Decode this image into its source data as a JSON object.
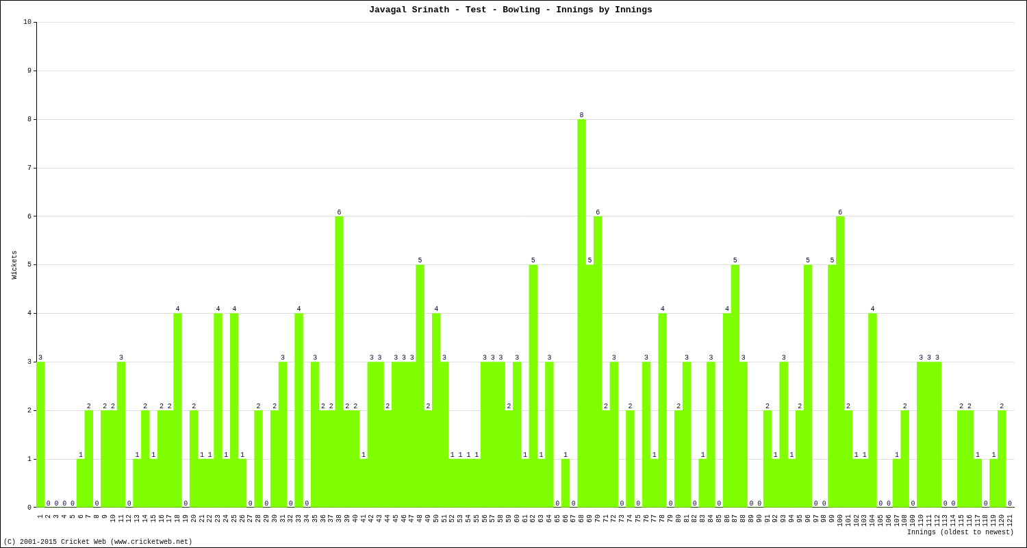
{
  "chart_data": {
    "type": "bar",
    "title": "Javagal Srinath - Test - Bowling - Innings by Innings",
    "x_label": "Innings (oldest to newest)",
    "y_label": "Wickets",
    "footer": "(C) 2001-2015 Cricket Web (www.cricketweb.net)",
    "categories": [
      "1",
      "2",
      "3",
      "4",
      "5",
      "6",
      "7",
      "8",
      "9",
      "10",
      "11",
      "12",
      "13",
      "14",
      "15",
      "16",
      "17",
      "18",
      "19",
      "20",
      "21",
      "22",
      "23",
      "24",
      "25",
      "26",
      "27",
      "28",
      "29",
      "30",
      "31",
      "32",
      "33",
      "34",
      "35",
      "36",
      "37",
      "38",
      "39",
      "40",
      "41",
      "42",
      "43",
      "44",
      "45",
      "46",
      "47",
      "48",
      "49",
      "50",
      "51",
      "52",
      "53",
      "54",
      "55",
      "56",
      "57",
      "58",
      "59",
      "60",
      "61",
      "62",
      "63",
      "64",
      "65",
      "66",
      "67",
      "68",
      "69",
      "70",
      "71",
      "72",
      "73",
      "74",
      "75",
      "76",
      "77",
      "78",
      "79",
      "80",
      "81",
      "82",
      "83",
      "84",
      "85",
      "86",
      "87",
      "88",
      "89",
      "90",
      "91",
      "92",
      "93",
      "94",
      "95",
      "96",
      "97",
      "98",
      "99",
      "100",
      "101",
      "102",
      "103",
      "104",
      "105",
      "106",
      "107",
      "108",
      "109",
      "110",
      "111",
      "112",
      "113",
      "114",
      "115",
      "116",
      "117",
      "118",
      "119",
      "120",
      "121"
    ],
    "values": [
      3,
      0,
      0,
      0,
      0,
      1,
      2,
      0,
      2,
      2,
      3,
      0,
      1,
      2,
      1,
      2,
      2,
      4,
      0,
      2,
      1,
      1,
      4,
      1,
      4,
      1,
      0,
      2,
      0,
      2,
      3,
      0,
      4,
      0,
      3,
      2,
      2,
      6,
      2,
      2,
      1,
      3,
      3,
      2,
      3,
      3,
      3,
      5,
      2,
      4,
      3,
      1,
      1,
      1,
      1,
      3,
      3,
      3,
      2,
      3,
      1,
      5,
      1,
      3,
      0,
      1,
      0,
      8,
      5,
      6,
      2,
      3,
      0,
      2,
      0,
      3,
      1,
      4,
      0,
      2,
      3,
      0,
      1,
      3,
      0,
      4,
      5,
      3,
      0,
      0,
      2,
      1,
      3,
      1,
      2,
      5,
      0,
      0,
      5,
      6,
      2,
      1,
      1,
      4,
      0,
      0,
      1,
      2,
      0,
      3,
      3,
      3,
      0,
      0,
      2,
      2,
      1,
      0,
      1,
      2,
      0
    ],
    "color": "#7fff00",
    "ylim": [
      0,
      10
    ],
    "yticks": [
      0,
      1,
      2,
      3,
      4,
      5,
      6,
      7,
      8,
      9,
      10
    ],
    "grid": true,
    "data_labels": true
  }
}
